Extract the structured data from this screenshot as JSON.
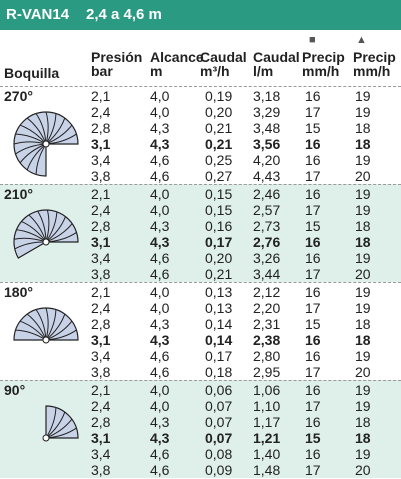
{
  "header": {
    "model": "R-VAN14",
    "range": "2,4 a 4,6 m"
  },
  "columns": [
    {
      "title": "Boquilla",
      "unit": ""
    },
    {
      "title": "Presión",
      "unit": "bar"
    },
    {
      "title": "Alcance",
      "unit": "m"
    },
    {
      "title": "Caudal",
      "unit": "m³/h"
    },
    {
      "title": "Caudal",
      "unit": "l/m"
    },
    {
      "title": "Precip",
      "unit": "mm/h",
      "symbol": "■",
      "symbol_name": "square-icon"
    },
    {
      "title": "Precip",
      "unit": "mm/h",
      "symbol": "▲",
      "symbol_name": "triangle-icon"
    }
  ],
  "colors": {
    "banner": "#2a9a83",
    "shaded": "#dff0ea",
    "nozzle_fill": "#c9d3e8",
    "nozzle_stroke": "#222222"
  },
  "sections": [
    {
      "angle": "270°",
      "arc_degrees": 270,
      "rows": [
        {
          "values": [
            "2,1",
            "4,0",
            "0,19",
            "3,18",
            "16",
            "19"
          ],
          "bold": false
        },
        {
          "values": [
            "2,4",
            "4,0",
            "0,20",
            "3,29",
            "17",
            "19"
          ],
          "bold": false
        },
        {
          "values": [
            "2,8",
            "4,3",
            "0,21",
            "3,48",
            "15",
            "18"
          ],
          "bold": false
        },
        {
          "values": [
            "3,1",
            "4,3",
            "0,21",
            "3,56",
            "16",
            "18"
          ],
          "bold": true
        },
        {
          "values": [
            "3,4",
            "4,6",
            "0,25",
            "4,20",
            "16",
            "19"
          ],
          "bold": false
        },
        {
          "values": [
            "3,8",
            "4,6",
            "0,27",
            "4,43",
            "17",
            "20"
          ],
          "bold": false
        }
      ]
    },
    {
      "angle": "210°",
      "arc_degrees": 210,
      "rows": [
        {
          "values": [
            "2,1",
            "4,0",
            "0,15",
            "2,46",
            "16",
            "19"
          ],
          "bold": false
        },
        {
          "values": [
            "2,4",
            "4,0",
            "0,15",
            "2,57",
            "17",
            "19"
          ],
          "bold": false
        },
        {
          "values": [
            "2,8",
            "4,3",
            "0,16",
            "2,73",
            "15",
            "18"
          ],
          "bold": false
        },
        {
          "values": [
            "3,1",
            "4,3",
            "0,17",
            "2,76",
            "16",
            "18"
          ],
          "bold": true
        },
        {
          "values": [
            "3,4",
            "4,6",
            "0,20",
            "3,26",
            "16",
            "19"
          ],
          "bold": false
        },
        {
          "values": [
            "3,8",
            "4,6",
            "0,21",
            "3,44",
            "17",
            "20"
          ],
          "bold": false
        }
      ]
    },
    {
      "angle": "180°",
      "arc_degrees": 180,
      "rows": [
        {
          "values": [
            "2,1",
            "4,0",
            "0,13",
            "2,12",
            "16",
            "19"
          ],
          "bold": false
        },
        {
          "values": [
            "2,4",
            "4,0",
            "0,13",
            "2,20",
            "17",
            "19"
          ],
          "bold": false
        },
        {
          "values": [
            "2,8",
            "4,3",
            "0,14",
            "2,31",
            "15",
            "18"
          ],
          "bold": false
        },
        {
          "values": [
            "3,1",
            "4,3",
            "0,14",
            "2,38",
            "16",
            "18"
          ],
          "bold": true
        },
        {
          "values": [
            "3,4",
            "4,6",
            "0,17",
            "2,80",
            "16",
            "19"
          ],
          "bold": false
        },
        {
          "values": [
            "3,8",
            "4,6",
            "0,18",
            "2,95",
            "17",
            "20"
          ],
          "bold": false
        }
      ]
    },
    {
      "angle": "90°",
      "arc_degrees": 90,
      "rows": [
        {
          "values": [
            "2,1",
            "4,0",
            "0,06",
            "1,06",
            "16",
            "19"
          ],
          "bold": false
        },
        {
          "values": [
            "2,4",
            "4,0",
            "0,07",
            "1,10",
            "17",
            "19"
          ],
          "bold": false
        },
        {
          "values": [
            "2,8",
            "4,3",
            "0,07",
            "1,17",
            "16",
            "18"
          ],
          "bold": false
        },
        {
          "values": [
            "3,1",
            "4,3",
            "0,07",
            "1,21",
            "15",
            "18"
          ],
          "bold": true
        },
        {
          "values": [
            "3,4",
            "4,6",
            "0,08",
            "1,40",
            "16",
            "19"
          ],
          "bold": false
        },
        {
          "values": [
            "3,8",
            "4,6",
            "0,09",
            "1,48",
            "17",
            "20"
          ],
          "bold": false
        }
      ]
    }
  ]
}
